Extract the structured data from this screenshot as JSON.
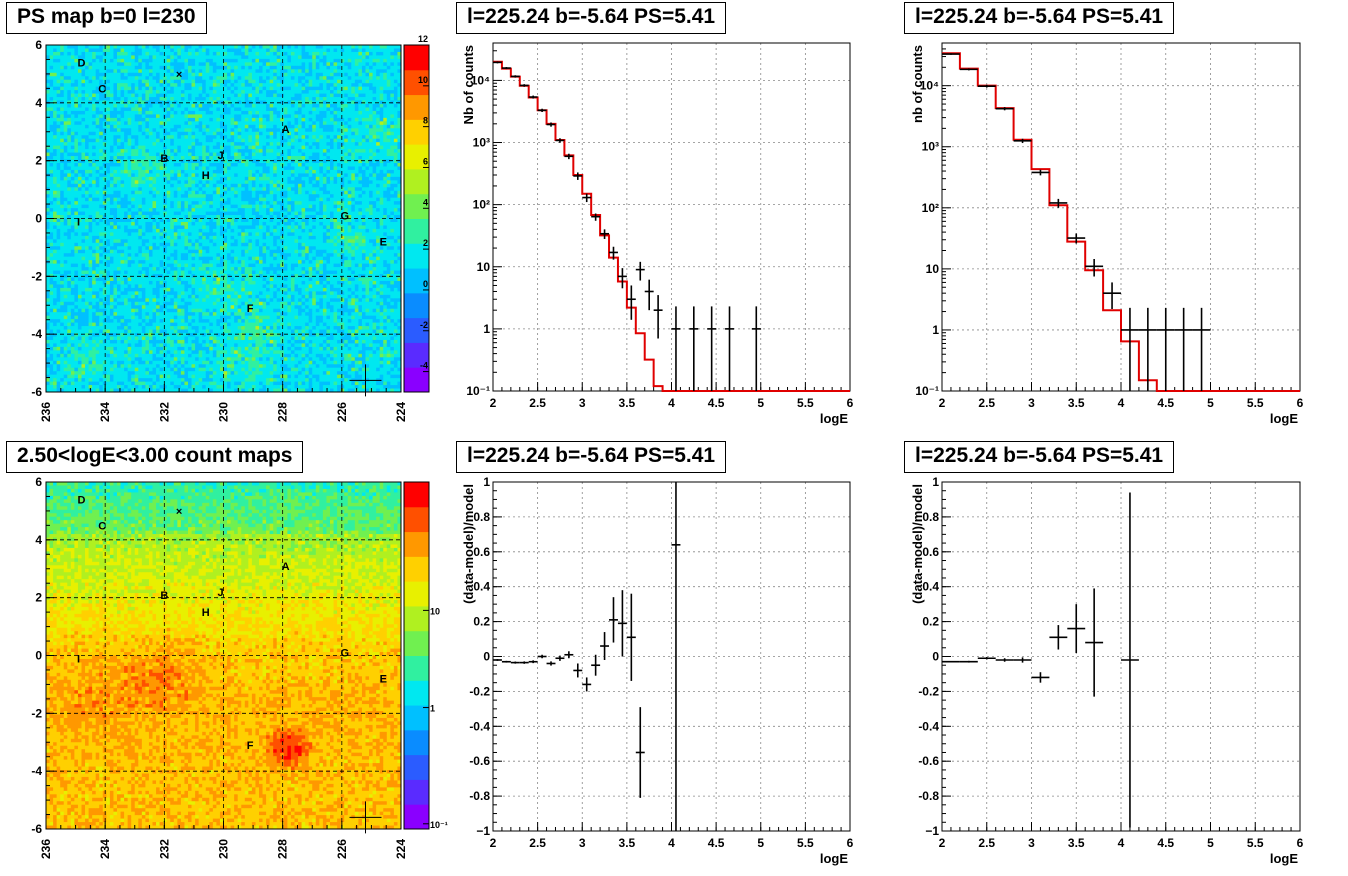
{
  "titles": {
    "map1": "PS map b=0 l=230",
    "map2": "2.50<logE<3.00 count maps",
    "spec1": "l=225.24 b=-5.64 PS=5.41",
    "spec2": "l=225.24 b=-5.64 PS=5.41",
    "resid1": "l=225.24 b=-5.64 PS=5.41",
    "resid2": "l=225.24 b=-5.64 PS=5.41"
  },
  "colors": {
    "model": "#e00000",
    "data": "#000000",
    "grid": "#555555"
  },
  "sources": [
    {
      "label": "D",
      "l": 234.8,
      "b": 5.4
    },
    {
      "label": "C",
      "l": 234.1,
      "b": 4.5
    },
    {
      "label": "A",
      "l": 227.9,
      "b": 3.1
    },
    {
      "label": "B",
      "l": 232.0,
      "b": 2.1
    },
    {
      "label": "J",
      "l": 230.1,
      "b": 2.2
    },
    {
      "label": "H",
      "l": 230.6,
      "b": 1.5
    },
    {
      "label": "G",
      "l": 225.9,
      "b": 0.1
    },
    {
      "label": "I",
      "l": 234.9,
      "b": -0.1
    },
    {
      "label": "E",
      "l": 224.6,
      "b": -0.8
    },
    {
      "label": "F",
      "l": 229.1,
      "b": -3.1
    }
  ],
  "marker_x": {
    "l": 231.5,
    "b": 5.0
  },
  "marker_plus": {
    "l": 225.2,
    "b": -5.6
  },
  "chart_data": [
    {
      "id": "map1",
      "type": "heatmap",
      "xlim": [
        236,
        224
      ],
      "ylim": [
        -6,
        6
      ],
      "xticks": [
        "236",
        "234",
        "232",
        "230",
        "228",
        "226",
        "224"
      ],
      "yticks": [
        "-6",
        "-4",
        "-2",
        "0",
        "2",
        "4",
        "6"
      ],
      "colorbar": {
        "min": -5,
        "max": 12,
        "ticks": [
          "-4",
          "-2",
          "0",
          "2",
          "4",
          "6",
          "8",
          "10",
          "12"
        ],
        "palette": [
          "#8a00ff",
          "#5a2bff",
          "#2b5cff",
          "#0a8cff",
          "#00c0ff",
          "#00e8f0",
          "#30f0a0",
          "#70f050",
          "#b0f020",
          "#e8f000",
          "#ffd000",
          "#ff9800",
          "#ff5000",
          "#ff0000"
        ]
      }
    },
    {
      "id": "map2",
      "type": "heatmap",
      "xlim": [
        236,
        224
      ],
      "ylim": [
        -6,
        6
      ],
      "xticks": [
        "236",
        "234",
        "232",
        "230",
        "228",
        "226",
        "224"
      ],
      "yticks": [
        "-6",
        "-4",
        "-2",
        "0",
        "2",
        "4",
        "6"
      ],
      "colorbar": {
        "log": true,
        "ticks": [
          "10",
          "1",
          "10⁻¹"
        ],
        "palette": [
          "#8a00ff",
          "#5a2bff",
          "#2b5cff",
          "#0a8cff",
          "#00c0ff",
          "#00e8f0",
          "#30f0a0",
          "#70f050",
          "#b0f020",
          "#e8f000",
          "#ffd000",
          "#ff9800",
          "#ff5000",
          "#ff0000"
        ]
      }
    },
    {
      "id": "spec1",
      "type": "line",
      "ylog": true,
      "xlabel": "logE",
      "ylabel": "Nb of counts",
      "xlim": [
        2,
        6
      ],
      "ylim": [
        0.1,
        40000
      ],
      "xticks": [
        "2",
        "2.5",
        "3",
        "3.5",
        "4",
        "4.5",
        "5",
        "5.5",
        "6"
      ],
      "yticks": [
        {
          "v": 0.1,
          "t": "10⁻¹"
        },
        {
          "v": 1,
          "t": "1"
        },
        {
          "v": 10,
          "t": "10"
        },
        {
          "v": 100,
          "t": "10²"
        },
        {
          "v": 1000,
          "t": "10³"
        },
        {
          "v": 10000,
          "t": "10⁴"
        }
      ],
      "bin_width": 0.1,
      "model": [
        20000,
        15500,
        11500,
        8200,
        5300,
        3300,
        2000,
        1100,
        620,
        300,
        150,
        68,
        32,
        14,
        5.8,
        2.2,
        0.85,
        0.32,
        0.12,
        0.04,
        0.01,
        0.005,
        0.002,
        0.001,
        0.001,
        0.001,
        0.001,
        0.001,
        0.001,
        0.001,
        0.001,
        0.001,
        0.001,
        0.001,
        0.001,
        0.001,
        0.001,
        0.001,
        0.001,
        0.001
      ],
      "data": [
        {
          "x": 2.05,
          "y": 19500,
          "lo": 18800,
          "hi": 20200
        },
        {
          "x": 2.15,
          "y": 15800,
          "lo": 15200,
          "hi": 16400
        },
        {
          "x": 2.25,
          "y": 11600,
          "lo": 11100,
          "hi": 12100
        },
        {
          "x": 2.35,
          "y": 8300,
          "lo": 7900,
          "hi": 8700
        },
        {
          "x": 2.45,
          "y": 5400,
          "lo": 5100,
          "hi": 5700
        },
        {
          "x": 2.55,
          "y": 3300,
          "lo": 3100,
          "hi": 3500
        },
        {
          "x": 2.65,
          "y": 1950,
          "lo": 1800,
          "hi": 2100
        },
        {
          "x": 2.75,
          "y": 1080,
          "lo": 990,
          "hi": 1170
        },
        {
          "x": 2.85,
          "y": 600,
          "lo": 540,
          "hi": 660
        },
        {
          "x": 2.95,
          "y": 290,
          "lo": 250,
          "hi": 330
        },
        {
          "x": 3.05,
          "y": 130,
          "lo": 110,
          "hi": 150
        },
        {
          "x": 3.15,
          "y": 64,
          "lo": 55,
          "hi": 72
        },
        {
          "x": 3.25,
          "y": 34,
          "lo": 28,
          "hi": 40
        },
        {
          "x": 3.35,
          "y": 17,
          "lo": 13,
          "hi": 21
        },
        {
          "x": 3.45,
          "y": 7,
          "lo": 4.5,
          "hi": 9.5
        },
        {
          "x": 3.55,
          "y": 3,
          "lo": 1.4,
          "hi": 5
        },
        {
          "x": 3.65,
          "y": 9,
          "lo": 6,
          "hi": 12
        },
        {
          "x": 3.75,
          "y": 4,
          "lo": 2,
          "hi": 6.2
        },
        {
          "x": 3.85,
          "y": 2,
          "lo": 0.7,
          "hi": 3.5
        },
        {
          "x": 4.05,
          "y": 1,
          "lo": 0.1,
          "hi": 2.3
        },
        {
          "x": 4.25,
          "y": 1,
          "lo": 0.1,
          "hi": 2.3
        },
        {
          "x": 4.45,
          "y": 1,
          "lo": 0.1,
          "hi": 2.3
        },
        {
          "x": 4.65,
          "y": 1,
          "lo": 0.1,
          "hi": 2.3
        },
        {
          "x": 4.95,
          "y": 1,
          "lo": 0.1,
          "hi": 2.3
        }
      ]
    },
    {
      "id": "spec2",
      "type": "line",
      "ylog": true,
      "xlabel": "logE",
      "ylabel": "nb of counts",
      "xlim": [
        2,
        6
      ],
      "ylim": [
        0.1,
        50000
      ],
      "xticks": [
        "2",
        "2.5",
        "3",
        "3.5",
        "4",
        "4.5",
        "5",
        "5.5",
        "6"
      ],
      "yticks": [
        {
          "v": 0.1,
          "t": "10⁻¹"
        },
        {
          "v": 1,
          "t": "1"
        },
        {
          "v": 10,
          "t": "10"
        },
        {
          "v": 100,
          "t": "10²"
        },
        {
          "v": 1000,
          "t": "10³"
        },
        {
          "v": 10000,
          "t": "10⁴"
        }
      ],
      "bin_width": 0.2,
      "model": [
        34000,
        19000,
        10000,
        4300,
        1300,
        430,
        110,
        28,
        9.5,
        2.1,
        0.65,
        0.15,
        0.04,
        0.01,
        0.005,
        0.002,
        0.001,
        0.001,
        0.001,
        0.001
      ],
      "data": [
        {
          "x": 2.1,
          "y": 33000,
          "lo": 32000,
          "hi": 34000
        },
        {
          "x": 2.3,
          "y": 18500,
          "lo": 17800,
          "hi": 19200
        },
        {
          "x": 2.5,
          "y": 9800,
          "lo": 9300,
          "hi": 10300
        },
        {
          "x": 2.7,
          "y": 4200,
          "lo": 3950,
          "hi": 4450
        },
        {
          "x": 2.9,
          "y": 1250,
          "lo": 1150,
          "hi": 1350
        },
        {
          "x": 3.1,
          "y": 380,
          "lo": 340,
          "hi": 420
        },
        {
          "x": 3.3,
          "y": 120,
          "lo": 100,
          "hi": 140
        },
        {
          "x": 3.5,
          "y": 32,
          "lo": 26,
          "hi": 38
        },
        {
          "x": 3.7,
          "y": 11,
          "lo": 7.5,
          "hi": 14.5
        },
        {
          "x": 3.9,
          "y": 4,
          "lo": 2.2,
          "hi": 6
        },
        {
          "x": 4.1,
          "y": 1,
          "lo": 0.1,
          "hi": 2.3
        },
        {
          "x": 4.3,
          "y": 1,
          "lo": 0.1,
          "hi": 2.3
        },
        {
          "x": 4.5,
          "y": 1,
          "lo": 0.1,
          "hi": 2.3
        },
        {
          "x": 4.7,
          "y": 1,
          "lo": 0.1,
          "hi": 2.3
        },
        {
          "x": 4.9,
          "y": 1,
          "lo": 0.1,
          "hi": 2.3
        }
      ]
    },
    {
      "id": "resid1",
      "type": "scatter",
      "xlabel": "logE",
      "ylabel": "(data-model)/model",
      "xlim": [
        2,
        6
      ],
      "ylim": [
        -1,
        1
      ],
      "xticks": [
        "2",
        "2.5",
        "3",
        "3.5",
        "4",
        "4.5",
        "5",
        "5.5",
        "6"
      ],
      "yticks": [
        "-1",
        "-0.8",
        "-0.6",
        "-0.4",
        "-0.2",
        "0",
        "0.2",
        "0.4",
        "0.6",
        "0.8",
        "1"
      ],
      "xerr": 0.05,
      "data": [
        {
          "x": 2.05,
          "y": -0.02,
          "e": 0.005
        },
        {
          "x": 2.15,
          "y": -0.03,
          "e": 0.005
        },
        {
          "x": 2.25,
          "y": -0.035,
          "e": 0.006
        },
        {
          "x": 2.35,
          "y": -0.035,
          "e": 0.007
        },
        {
          "x": 2.45,
          "y": -0.03,
          "e": 0.008
        },
        {
          "x": 2.55,
          "y": 0.0,
          "e": 0.01
        },
        {
          "x": 2.65,
          "y": -0.04,
          "e": 0.012
        },
        {
          "x": 2.75,
          "y": -0.01,
          "e": 0.015
        },
        {
          "x": 2.85,
          "y": 0.01,
          "e": 0.02
        },
        {
          "x": 2.95,
          "y": -0.08,
          "e": 0.04
        },
        {
          "x": 3.05,
          "y": -0.16,
          "e": 0.04
        },
        {
          "x": 3.15,
          "y": -0.05,
          "e": 0.06
        },
        {
          "x": 3.25,
          "y": 0.06,
          "e": 0.08
        },
        {
          "x": 3.35,
          "y": 0.21,
          "e": 0.13
        },
        {
          "x": 3.45,
          "y": 0.19,
          "e": 0.19
        },
        {
          "x": 3.55,
          "y": 0.11,
          "e": 0.25
        },
        {
          "x": 3.65,
          "y": -0.55,
          "e": 0.26
        },
        {
          "x": 4.05,
          "y": 0.64,
          "e": 1.7
        }
      ]
    },
    {
      "id": "resid2",
      "type": "scatter",
      "xlabel": "logE",
      "ylabel": "(data-model)/model",
      "xlim": [
        2,
        6
      ],
      "ylim": [
        -1,
        1
      ],
      "xticks": [
        "2",
        "2.5",
        "3",
        "3.5",
        "4",
        "4.5",
        "5",
        "5.5",
        "6"
      ],
      "yticks": [
        "-1",
        "-0.8",
        "-0.6",
        "-0.4",
        "-0.2",
        "0",
        "0.2",
        "0.4",
        "0.6",
        "0.8",
        "1"
      ],
      "xerr": 0.1,
      "data": [
        {
          "x": 2.1,
          "y": -0.03,
          "e": 0.004
        },
        {
          "x": 2.3,
          "y": -0.03,
          "e": 0.005
        },
        {
          "x": 2.5,
          "y": -0.01,
          "e": 0.007
        },
        {
          "x": 2.7,
          "y": -0.02,
          "e": 0.01
        },
        {
          "x": 2.9,
          "y": -0.02,
          "e": 0.015
        },
        {
          "x": 3.1,
          "y": -0.12,
          "e": 0.03
        },
        {
          "x": 3.3,
          "y": 0.11,
          "e": 0.07
        },
        {
          "x": 3.5,
          "y": 0.16,
          "e": 0.14
        },
        {
          "x": 3.7,
          "y": 0.08,
          "e": 0.31
        },
        {
          "x": 4.1,
          "y": -0.02,
          "e": 0.96
        }
      ]
    }
  ]
}
